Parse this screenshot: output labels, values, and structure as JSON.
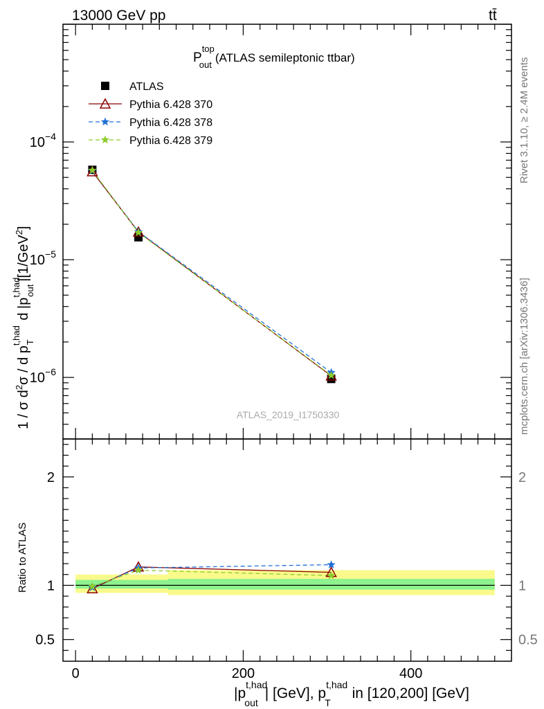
{
  "header": {
    "left": "13000 GeV pp",
    "right": "tt̄"
  },
  "side": {
    "rivet": "Rivet 3.1.10, ≥ 2.4M events",
    "mcplots": "mcplots.cern.ch [arXiv:1306.3436]"
  },
  "colors": {
    "atlas": "#000000",
    "py370": "#8b0000",
    "py378": "#1f6fd6",
    "py379": "#8ccc2b",
    "band_inner": "#8ef28e",
    "band_outer": "#fafa8c"
  },
  "chart_data": [
    {
      "type": "line",
      "title": "P_out^top (ATLAS semileptonic ttbar)",
      "title_main": "P",
      "title_sub": "out",
      "title_sup": "top",
      "title_rest": "(ATLAS semileptonic ttbar)",
      "ylabel": "1 / σ d²σ / d p_T^{t,had} d |p_out^{t,had}| [1/GeV²]",
      "watermark": "ATLAS_2019_I1750330",
      "yscale": "log",
      "xlim": [
        -15,
        520
      ],
      "ylim": [
        3e-07,
        0.001
      ],
      "yticks": [
        {
          "value": 0.0001,
          "base": "10",
          "exp": "−4"
        },
        {
          "value": 1e-05,
          "base": "10",
          "exp": "−5"
        },
        {
          "value": 1e-06,
          "base": "10",
          "exp": "−6"
        }
      ],
      "legend_position": "top-left",
      "series": [
        {
          "name": "ATLAS",
          "marker": "square",
          "x": [
            20,
            75,
            305
          ],
          "y": [
            5.8e-05,
            1.55e-05,
            9.7e-07
          ]
        },
        {
          "name": "Pythia 6.428 370",
          "marker": "triangle",
          "x": [
            20,
            75,
            305
          ],
          "y": [
            5.6e-05,
            1.72e-05,
            1.03e-06
          ]
        },
        {
          "name": "Pythia 6.428 378",
          "marker": "star",
          "x": [
            20,
            75,
            305
          ],
          "y": [
            5.7e-05,
            1.73e-05,
            1.1e-06
          ]
        },
        {
          "name": "Pythia 6.428 379",
          "marker": "star",
          "x": [
            20,
            75,
            305
          ],
          "y": [
            5.75e-05,
            1.7e-05,
            1.04e-06
          ]
        }
      ]
    },
    {
      "type": "line",
      "ylabel": "Ratio to ATLAS",
      "xlabel": "|p_out^{t,had}| [GeV], p_T^{t,had} in [120,200] [GeV]",
      "xlim": [
        -15,
        520
      ],
      "ylim": [
        0.3,
        2.35
      ],
      "xticks": [
        0,
        200,
        400
      ],
      "xtick_labels": [
        "0",
        "200",
        "400"
      ],
      "yticks": [
        0.5,
        1,
        2
      ],
      "ytick_labels": [
        "0.5",
        "1",
        "2"
      ],
      "bands": [
        {
          "x": [
            0,
            110
          ],
          "inner": [
            0.97,
            1.05
          ],
          "outer": [
            0.93,
            1.1
          ]
        },
        {
          "x": [
            110,
            500
          ],
          "inner": [
            0.96,
            1.06
          ],
          "outer": [
            0.91,
            1.14
          ]
        }
      ],
      "series": [
        {
          "name": "Pythia 6.428 370",
          "x": [
            20,
            75,
            305
          ],
          "y": [
            0.97,
            1.17,
            1.12
          ]
        },
        {
          "name": "Pythia 6.428 378",
          "x": [
            20,
            75,
            305
          ],
          "y": [
            0.98,
            1.16,
            1.19
          ]
        },
        {
          "name": "Pythia 6.428 379",
          "x": [
            20,
            75,
            305
          ],
          "y": [
            0.99,
            1.14,
            1.09
          ]
        }
      ]
    }
  ]
}
